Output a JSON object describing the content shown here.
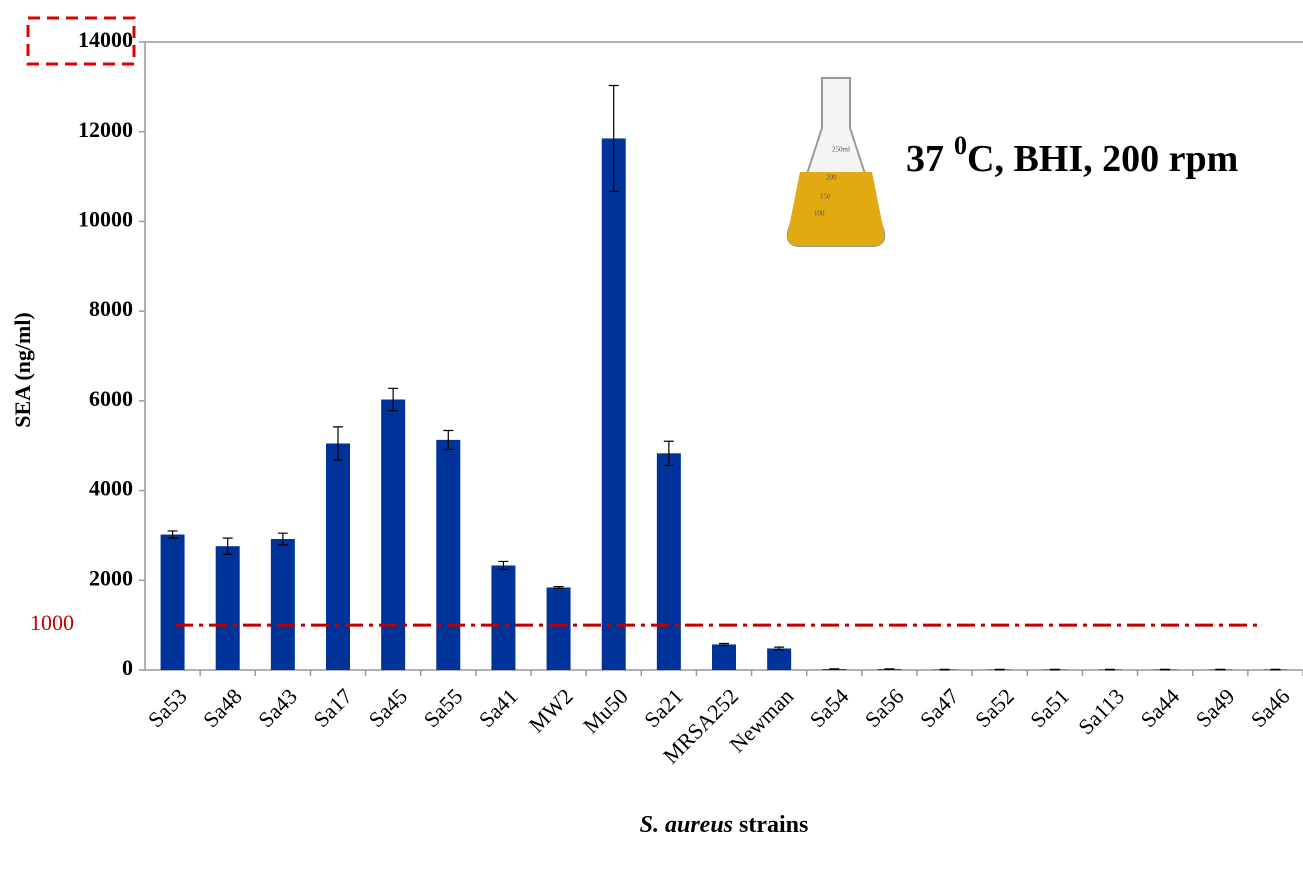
{
  "chart_data": {
    "type": "bar",
    "ylabel": "SEA (ng/ml)",
    "xlabel": {
      "italic": "S. aureus",
      "text": "strains"
    },
    "annotation": {
      "before": "37",
      "sup": "0",
      "after": "C, BHI, 200 rpm"
    },
    "flask_marks": [
      "250ml",
      "200",
      "150",
      "100"
    ],
    "categories": [
      "Sa53",
      "Sa48",
      "Sa43",
      "Sa17",
      "Sa45",
      "Sa55",
      "Sa41",
      "MW2",
      "Mu50",
      "Sa21",
      "MRSA252",
      "Newman",
      "Sa54",
      "Sa56",
      "Sa47",
      "Sa52",
      "Sa51",
      "Sa113",
      "Sa44",
      "Sa49",
      "Sa46"
    ],
    "values": [
      3020,
      2760,
      2920,
      5050,
      6030,
      5130,
      2330,
      1840,
      11850,
      4830,
      570,
      480,
      20,
      20,
      10,
      10,
      10,
      10,
      10,
      10,
      10
    ],
    "errors": [
      80,
      180,
      130,
      370,
      250,
      210,
      90,
      20,
      1180,
      270,
      20,
      30,
      5,
      5,
      5,
      5,
      5,
      5,
      5,
      5,
      5
    ],
    "color": "#003399",
    "threshold": {
      "value": 1000,
      "color": "#c00000"
    },
    "ylim": [
      0,
      14000
    ],
    "yticks": [
      0,
      2000,
      4000,
      6000,
      8000,
      10000,
      12000,
      14000
    ]
  }
}
